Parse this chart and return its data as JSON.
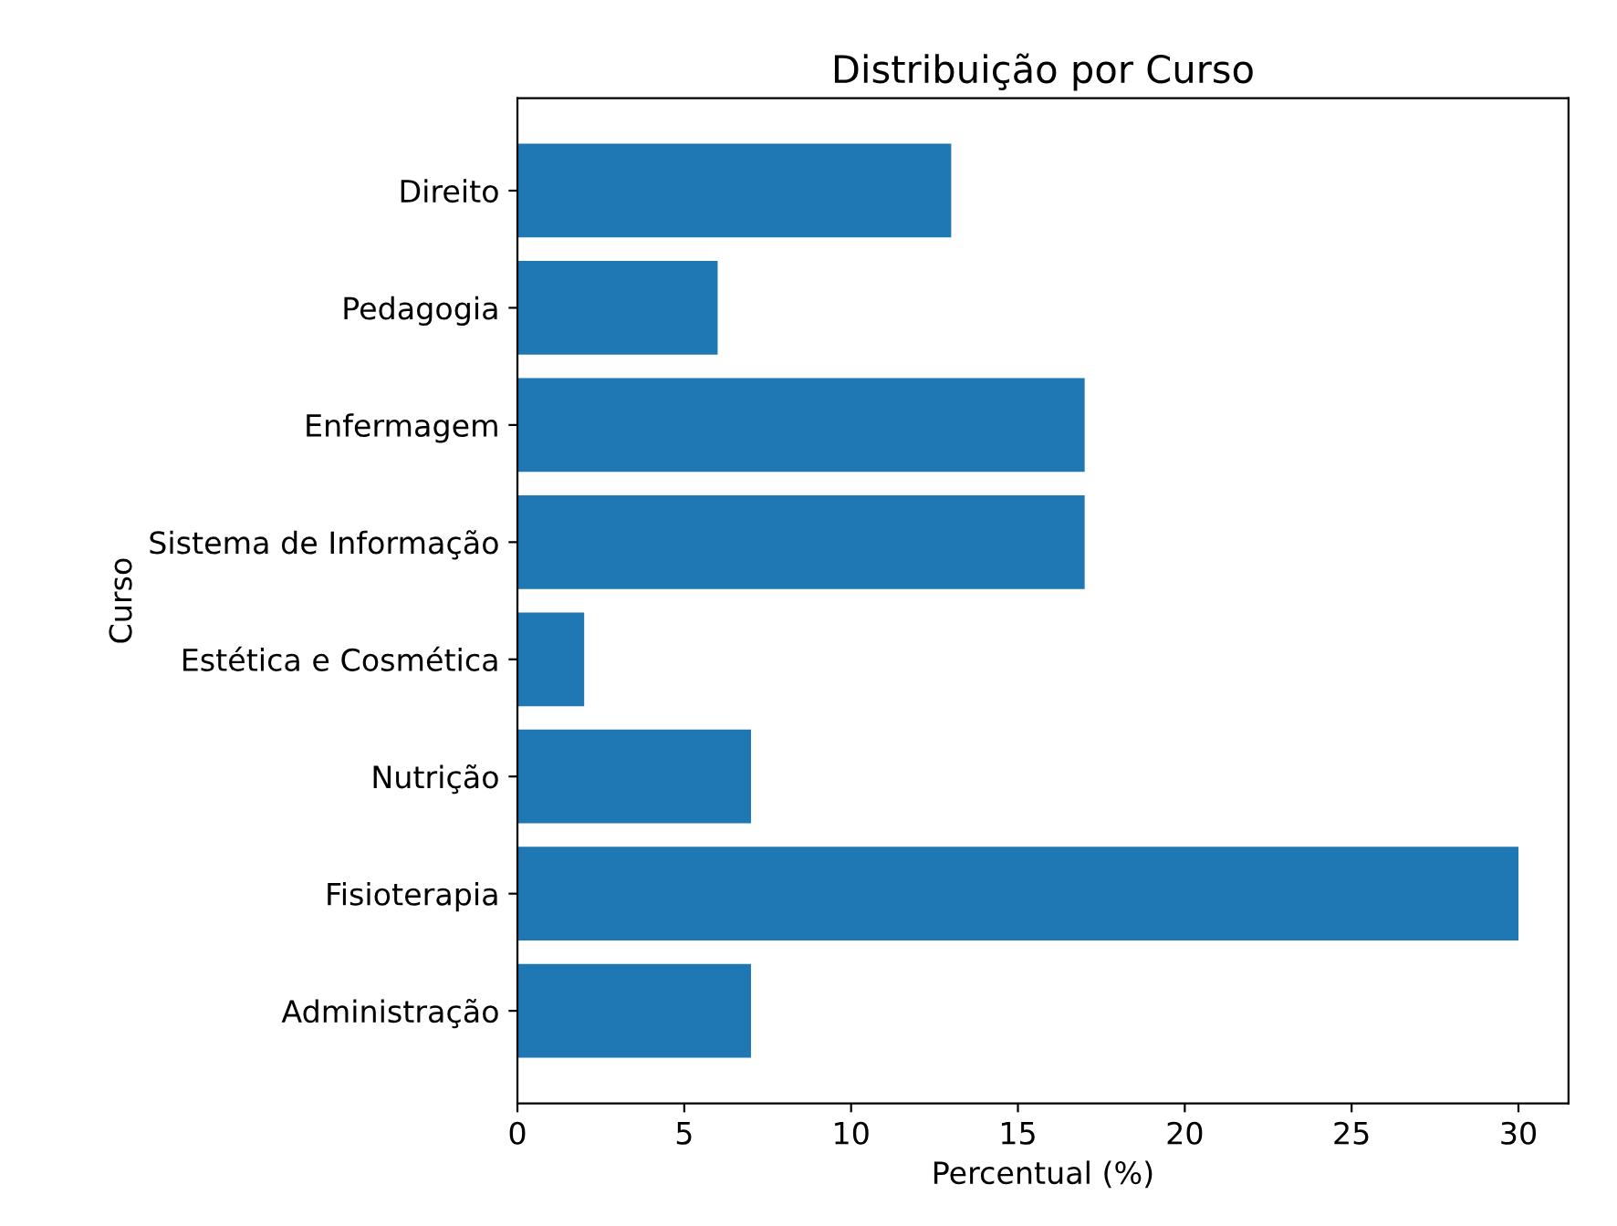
{
  "chart_data": {
    "type": "bar",
    "orientation": "horizontal",
    "title": "Distribuição por Curso",
    "xlabel": "Percentual (%)",
    "ylabel": "Curso",
    "categories": [
      "Direito",
      "Pedagogia",
      "Enfermagem",
      "Sistema de Informação",
      "Estética e Cosmética",
      "Nutrição",
      "Fisioterapia",
      "Administração"
    ],
    "values": [
      13,
      6,
      17,
      17,
      2,
      7,
      30,
      7
    ],
    "color": "#1f77b4",
    "xlim": [
      0,
      31.5
    ],
    "xticks": [
      0,
      5,
      10,
      15,
      20,
      25,
      30
    ],
    "grid": false,
    "legend": false
  }
}
